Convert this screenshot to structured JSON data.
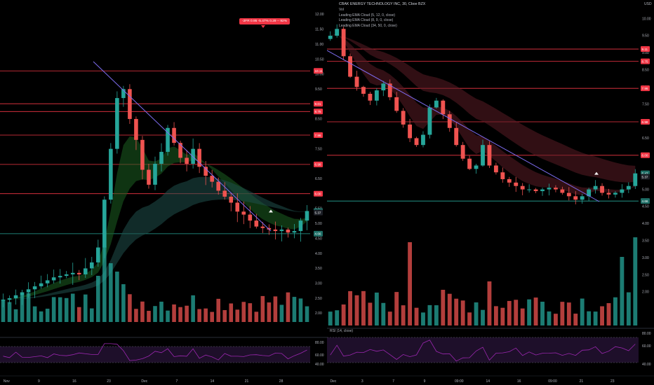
{
  "colors": {
    "background": "#000000",
    "up": "#26a69a",
    "down": "#ef5350",
    "hline_red": "#f23645",
    "hline_teal": "#26a69a",
    "trendline": "#7e6cf0",
    "rsi": "#9c27b0",
    "rsi_band": "#1e0f2a",
    "ema_green": "#1b5e20",
    "ema_red": "#5a1c24",
    "ema_teal": "#1f4f4a"
  },
  "left_chart": {
    "currency": "",
    "tooltip": "-2FR 0.95 -5.47% 0.29 -- 92%",
    "x_ticks": [
      "Nov",
      "9",
      "16",
      "23",
      "Dec",
      "7",
      "14",
      "21",
      "28"
    ],
    "y_ticks": [
      "12.00",
      "11.50",
      "11.00",
      "10.50",
      "10.00",
      "9.50",
      "9.00",
      "8.50",
      "8.00",
      "7.50",
      "7.00",
      "6.50",
      "6.00",
      "5.50",
      "5.00",
      "4.50",
      "4.00",
      "3.50",
      "3.00",
      "2.50",
      "2.00"
    ],
    "price_tags": [
      {
        "label": "10.11",
        "kind": "red"
      },
      {
        "label": "9.01",
        "kind": "red"
      },
      {
        "label": "8.75",
        "kind": "red"
      },
      {
        "label": "7.96",
        "kind": "red"
      },
      {
        "label": "6.98",
        "kind": "red"
      },
      {
        "label": "6.00",
        "kind": "red"
      },
      {
        "label": "5.42",
        "kind": "teal"
      },
      {
        "label": "5.37",
        "kind": "dark"
      },
      {
        "label": "4.66",
        "kind": "teal"
      }
    ],
    "volume_marker": "E",
    "rsi_ticks": [
      "80.00",
      "60.00",
      "40.00"
    ]
  },
  "right_chart": {
    "currency": "USD",
    "legend": {
      "title": "CBAK ENERGY TECHNOLOGY INC, 30, Cboe BZX",
      "lines": [
        "Vol",
        "Leading EMA Cloud (5, 12, 0, close)",
        "Leading EMA Cloud (8, 9, 0, close)",
        "Leading EMA Cloud (34, 50, 0, close)"
      ]
    },
    "rsi_label": "RSI (14, close)",
    "x_ticks": [
      "Dec",
      "3",
      "7",
      "9",
      "09:00",
      "14",
      "16",
      "09:00",
      "21",
      "23"
    ],
    "y_ticks": [
      "10.00",
      "9.50",
      "9.00",
      "8.50",
      "8.00",
      "7.50",
      "7.00",
      "6.50",
      "6.00",
      "5.50",
      "5.00",
      "4.50",
      "4.00",
      "3.50",
      "3.00",
      "2.50",
      "2.00"
    ],
    "price_tags": [
      {
        "label": "9.11",
        "kind": "red"
      },
      {
        "label": "8.75",
        "kind": "red"
      },
      {
        "label": "7.96",
        "kind": "red"
      },
      {
        "label": "6.98",
        "kind": "red"
      },
      {
        "label": "6.00",
        "kind": "red"
      },
      {
        "label": "5.47",
        "kind": "teal"
      },
      {
        "label": "5.37",
        "kind": "dark"
      },
      {
        "label": "4.66",
        "kind": "teal"
      }
    ],
    "rsi_ticks": [
      "80.00",
      "60.00",
      "40.00"
    ]
  },
  "chart_data": [
    {
      "type": "candlestick",
      "title": "",
      "symbol": "CBAK",
      "interval": "daily (approx.)",
      "y_range": [
        1.8,
        12.2
      ],
      "x_range_label": [
        "Nov",
        "28"
      ],
      "horizontal_levels": [
        10.11,
        9.01,
        8.75,
        7.96,
        6.98,
        6.0,
        4.66
      ],
      "last_price": 5.42,
      "close_series_approx": [
        2.45,
        2.5,
        2.6,
        2.7,
        2.8,
        2.9,
        3.0,
        3.1,
        3.2,
        3.25,
        3.3,
        3.35,
        3.3,
        3.5,
        3.7,
        4.2,
        5.8,
        7.5,
        9.2,
        9.5,
        8.5,
        7.8,
        6.8,
        6.3,
        7.0,
        7.4,
        8.2,
        7.7,
        7.2,
        7.0,
        7.5,
        6.9,
        6.6,
        6.4,
        6.1,
        5.9,
        5.7,
        5.4,
        5.3,
        5.1,
        4.9,
        4.85,
        4.8,
        4.75,
        4.8,
        4.7,
        4.75,
        5.1,
        5.42
      ],
      "rsi_ticks": [
        80,
        60,
        40
      ]
    },
    {
      "type": "candlestick",
      "title": "CBAK ENERGY TECHNOLOGY INC, 30, Cboe BZX",
      "symbol": "CBAK",
      "interval": "30",
      "y_range": [
        1.2,
        10.3
      ],
      "horizontal_levels": [
        9.11,
        8.75,
        7.96,
        6.98,
        6.0,
        4.66
      ],
      "last_price": 5.47,
      "close_series_approx": [
        9.5,
        9.7,
        8.9,
        8.3,
        8.0,
        7.8,
        7.6,
        7.9,
        8.1,
        7.7,
        7.3,
        6.9,
        6.5,
        6.3,
        6.6,
        7.4,
        7.6,
        7.2,
        6.8,
        6.3,
        5.9,
        5.6,
        5.7,
        6.3,
        5.7,
        5.5,
        5.3,
        5.2,
        5.1,
        5.0,
        5.0,
        4.95,
        5.0,
        5.05,
        5.0,
        4.9,
        4.8,
        4.7,
        4.8,
        5.0,
        5.1,
        4.9,
        4.85,
        4.9,
        5.0,
        5.1,
        5.47
      ],
      "rsi_ticks": [
        80,
        60,
        40
      ]
    }
  ]
}
